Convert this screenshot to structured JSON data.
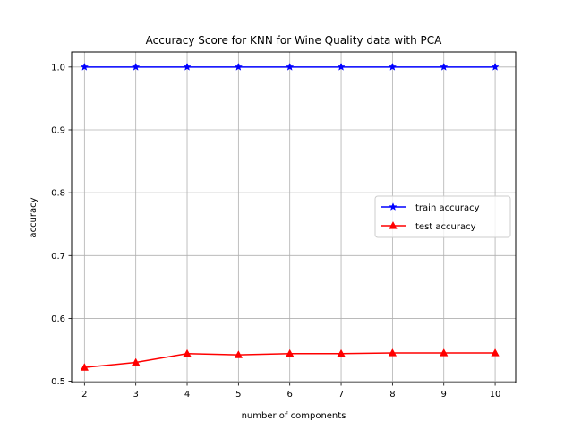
{
  "chart_data": {
    "type": "line",
    "title": "Accuracy Score for KNN for Wine Quality data with PCA",
    "xlabel": "number of components",
    "ylabel": "accuracy",
    "x": [
      2,
      3,
      4,
      5,
      6,
      7,
      8,
      9,
      10
    ],
    "xticks": [
      "2",
      "3",
      "4",
      "5",
      "6",
      "7",
      "8",
      "9",
      "10"
    ],
    "yticks": [
      "0.5",
      "0.6",
      "0.7",
      "0.8",
      "0.9",
      "1.0"
    ],
    "ytick_values": [
      0.5,
      0.6,
      0.7,
      0.8,
      0.9,
      1.0
    ],
    "xlim": [
      1.75,
      10.4
    ],
    "ylim": [
      0.498,
      1.024
    ],
    "grid": true,
    "legend_position": "center-right",
    "series": [
      {
        "name": "train accuracy",
        "color": "#0000ff",
        "marker": "star",
        "values": [
          1.0,
          1.0,
          1.0,
          1.0,
          1.0,
          1.0,
          1.0,
          1.0,
          1.0
        ]
      },
      {
        "name": "test accuracy",
        "color": "#ff0000",
        "marker": "triangle-up",
        "values": [
          0.522,
          0.53,
          0.544,
          0.542,
          0.544,
          0.544,
          0.545,
          0.545,
          0.545
        ]
      }
    ]
  }
}
